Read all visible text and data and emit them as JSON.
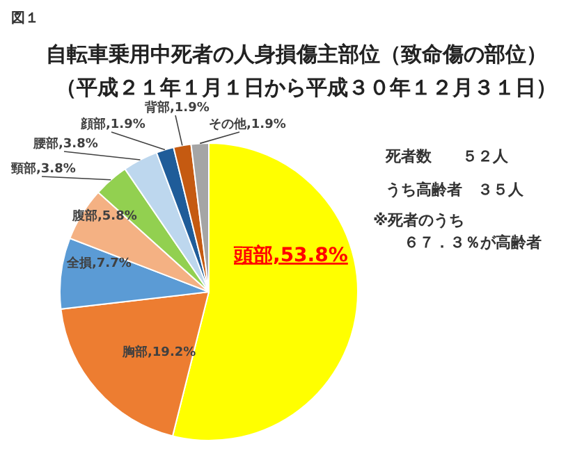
{
  "chart_data": {
    "type": "pie",
    "title": "自転車乗用中死者の人身損傷主部位（致命傷の部位）",
    "subtitle": "（平成２１年１月１日から平成３０年１２月３１日）",
    "categories": [
      "頭部",
      "胸部",
      "全損",
      "腹部",
      "頸部",
      "腰部",
      "顔部",
      "背部",
      "その他"
    ],
    "values": [
      53.8,
      19.2,
      7.7,
      5.8,
      3.8,
      3.8,
      1.9,
      1.9,
      1.9
    ],
    "value_labels": [
      "53.8%",
      "19.2%",
      "7.7%",
      "5.8%",
      "3.8%",
      "3.8%",
      "1.9%",
      "1.9%",
      "1.9%"
    ],
    "colors": [
      "#ffff00",
      "#ed7d31",
      "#5b9bd5",
      "#f4b183",
      "#92d050",
      "#bdd7ee",
      "#1f5c99",
      "#c55a11",
      "#a5a5a5"
    ],
    "annotations": [
      "図１",
      "死者数　　５２人",
      "うち高齢者　３５人",
      "※死者のうち",
      "６７．３％が高齢者"
    ]
  }
}
